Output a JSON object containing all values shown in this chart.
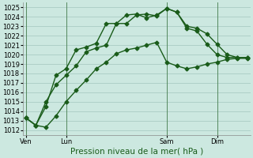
{
  "bg_color": "#cce8e0",
  "plot_bg_color": "#cce8e0",
  "line_color": "#1a5c1a",
  "grid_color": "#aaccc4",
  "xlabel": "Pression niveau de la mer( hPa )",
  "ylim": [
    1011.5,
    1025.5
  ],
  "yticks": [
    1012,
    1013,
    1014,
    1015,
    1016,
    1017,
    1018,
    1019,
    1020,
    1021,
    1022,
    1023,
    1024,
    1025
  ],
  "xtick_labels": [
    "Ven",
    "Lun",
    "Sam",
    "Dim"
  ],
  "xtick_positions": [
    0,
    4,
    14,
    19
  ],
  "total_points": 23,
  "xlim": [
    -0.3,
    22.3
  ],
  "line1_x": [
    0,
    1,
    2,
    3,
    4,
    5,
    6,
    7,
    8,
    9,
    10,
    11,
    12,
    13,
    14,
    15,
    16,
    17,
    18,
    19,
    20,
    21,
    22
  ],
  "line1_y": [
    1013.3,
    1012.5,
    1012.3,
    1013.5,
    1015.0,
    1016.2,
    1017.3,
    1018.5,
    1019.2,
    1020.1,
    1020.5,
    1020.7,
    1021.0,
    1021.3,
    1019.2,
    1018.8,
    1018.5,
    1018.7,
    1019.0,
    1019.2,
    1019.5,
    1019.6,
    1019.6
  ],
  "line2_x": [
    0,
    1,
    2,
    3,
    4,
    5,
    6,
    7,
    8,
    9,
    10,
    11,
    12,
    13,
    14,
    15,
    16,
    17,
    18,
    19,
    20,
    21,
    22
  ],
  "line2_y": [
    1013.3,
    1012.5,
    1014.5,
    1017.8,
    1018.5,
    1020.5,
    1020.8,
    1021.2,
    1023.3,
    1023.3,
    1024.2,
    1024.3,
    1023.9,
    1024.2,
    1024.9,
    1024.5,
    1023.0,
    1022.8,
    1022.2,
    1021.1,
    1020.0,
    1019.7,
    1019.7
  ],
  "line3_x": [
    0,
    1,
    2,
    3,
    4,
    5,
    6,
    7,
    8,
    9,
    10,
    11,
    12,
    13,
    14,
    15,
    16,
    17,
    18,
    19,
    20,
    21,
    22
  ],
  "line3_y": [
    1013.3,
    1012.5,
    1015.0,
    1016.8,
    1017.8,
    1018.8,
    1020.3,
    1020.7,
    1021.0,
    1023.3,
    1023.3,
    1024.2,
    1024.3,
    1024.1,
    1024.9,
    1024.5,
    1022.8,
    1022.5,
    1021.1,
    1020.0,
    1019.7,
    1019.7,
    1019.7
  ],
  "vline_positions": [
    0,
    4,
    14,
    19
  ],
  "markersize": 2.5,
  "linewidth": 1.0,
  "xlabel_fontsize": 7.5,
  "tick_fontsize": 6.0
}
